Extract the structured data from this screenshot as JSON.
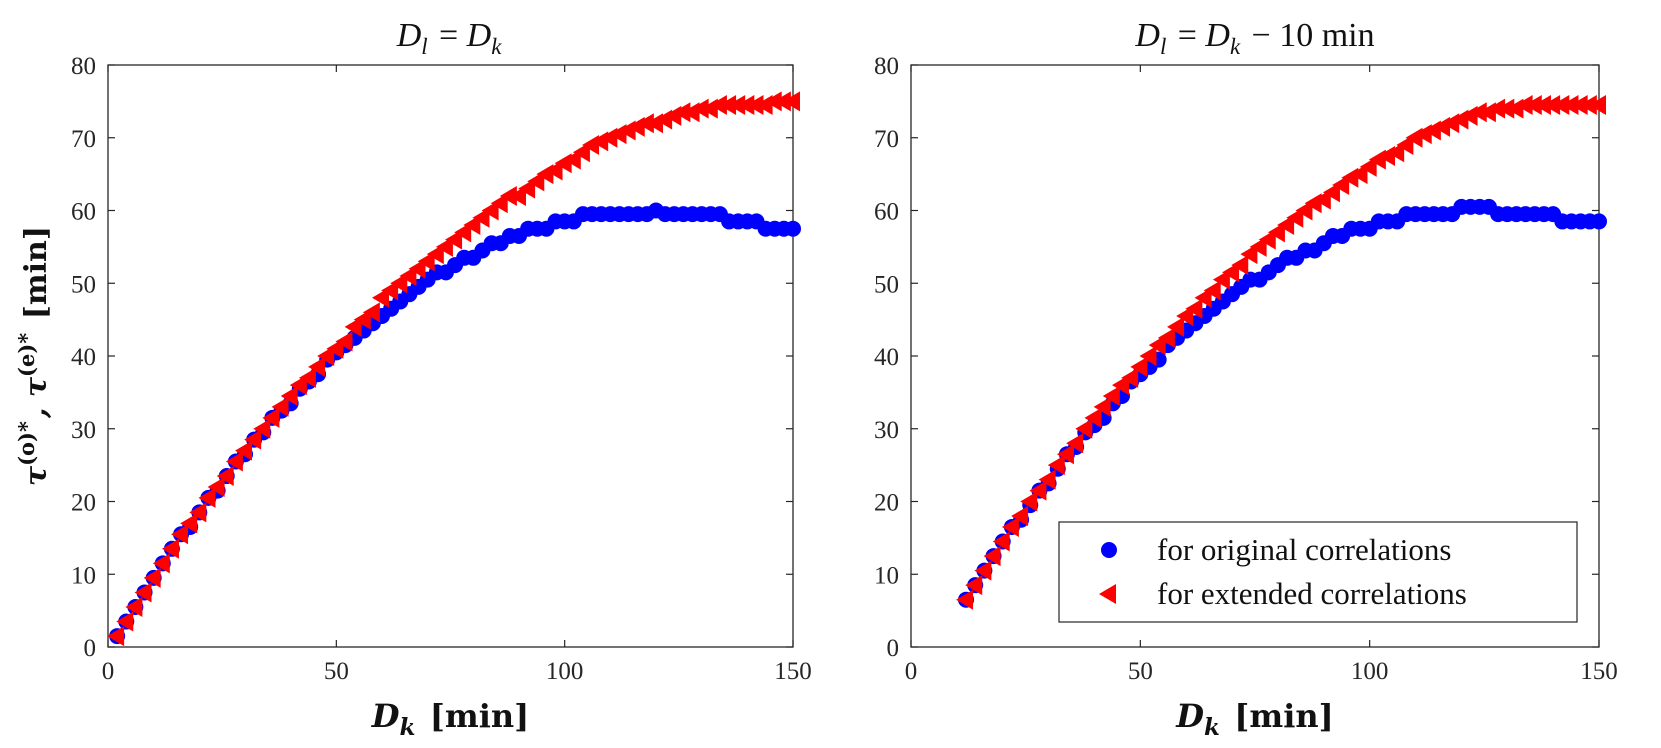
{
  "chart_data": [
    {
      "type": "scatter",
      "title": "D_l = D_k",
      "xlabel": "D_k [min]",
      "ylabel": "τ^(o)*, τ^(e)* [min]",
      "xlim": [
        0,
        150
      ],
      "ylim": [
        0,
        80
      ],
      "xticks": [
        "0",
        "50",
        "100",
        "150"
      ],
      "yticks": [
        "0",
        "10",
        "20",
        "30",
        "40",
        "50",
        "60",
        "70",
        "80"
      ],
      "grid": false,
      "series": [
        {
          "name": "for original correlations",
          "marker": "circle",
          "color": "#0000ff",
          "x": [
            2,
            4,
            6,
            8,
            10,
            12,
            14,
            16,
            18,
            20,
            22,
            24,
            26,
            28,
            30,
            32,
            34,
            36,
            38,
            40,
            42,
            44,
            46,
            48,
            50,
            52,
            54,
            56,
            58,
            60,
            62,
            64,
            66,
            68,
            70,
            72,
            74,
            76,
            78,
            80,
            82,
            84,
            86,
            88,
            90,
            92,
            94,
            96,
            98,
            100,
            102,
            104,
            106,
            108,
            110,
            112,
            114,
            116,
            118,
            120,
            122,
            124,
            126,
            128,
            130,
            132,
            134,
            136,
            138,
            140,
            142,
            144,
            146,
            148,
            150
          ],
          "y": [
            1.5,
            3.5,
            5.5,
            7.5,
            9.5,
            11.5,
            13.5,
            15.5,
            16.5,
            18.5,
            20.5,
            21.5,
            23.5,
            25.5,
            26.5,
            28.5,
            29.5,
            31.5,
            32.5,
            33.5,
            35.5,
            36.5,
            37.5,
            39.5,
            40.5,
            41.5,
            42.5,
            43.5,
            44.5,
            45.5,
            46.5,
            47.5,
            48.5,
            49.5,
            50.5,
            51.5,
            51.5,
            52.5,
            53.5,
            53.5,
            54.5,
            55.5,
            55.5,
            56.5,
            56.5,
            57.5,
            57.5,
            57.5,
            58.5,
            58.5,
            58.5,
            59.5,
            59.5,
            59.5,
            59.5,
            59.5,
            59.5,
            59.5,
            59.5,
            60,
            59.5,
            59.5,
            59.5,
            59.5,
            59.5,
            59.5,
            59.5,
            58.5,
            58.5,
            58.5,
            58.5,
            57.5,
            57.5,
            57.5,
            57.5
          ]
        },
        {
          "name": "for extended correlations",
          "marker": "triangle-left",
          "color": "#ff0000",
          "x": [
            2,
            4,
            6,
            8,
            10,
            12,
            14,
            16,
            18,
            20,
            22,
            24,
            26,
            28,
            30,
            32,
            34,
            36,
            38,
            40,
            42,
            44,
            46,
            48,
            50,
            52,
            54,
            56,
            58,
            60,
            62,
            64,
            66,
            68,
            70,
            72,
            74,
            76,
            78,
            80,
            82,
            84,
            86,
            88,
            90,
            92,
            94,
            96,
            98,
            100,
            102,
            104,
            106,
            108,
            110,
            112,
            114,
            116,
            118,
            120,
            122,
            124,
            126,
            128,
            130,
            132,
            134,
            136,
            138,
            140,
            142,
            144,
            146,
            148,
            150
          ],
          "y": [
            1.5,
            3.5,
            5.5,
            7.5,
            9.5,
            11.5,
            13.5,
            15.5,
            17,
            18.5,
            20.5,
            22,
            23.5,
            25.5,
            27,
            28.5,
            30,
            31.5,
            33,
            34.5,
            36,
            37,
            38.5,
            40,
            41,
            42,
            44,
            45,
            46,
            48,
            49,
            50,
            51,
            52,
            53,
            54,
            55,
            56,
            57,
            58,
            59,
            60,
            61,
            62,
            62,
            63,
            64,
            65,
            65.5,
            66.5,
            67,
            68,
            69,
            69.5,
            70,
            70.5,
            71,
            71.5,
            72,
            72,
            72.5,
            73,
            73.5,
            73.5,
            74,
            74,
            74.5,
            74.5,
            74.5,
            74.5,
            74.5,
            74.5,
            75,
            75,
            75
          ]
        }
      ]
    },
    {
      "type": "scatter",
      "title": "D_l = D_k − 10 min",
      "xlabel": "D_k [min]",
      "ylabel": "",
      "xlim": [
        0,
        150
      ],
      "ylim": [
        0,
        80
      ],
      "xticks": [
        "0",
        "50",
        "100",
        "150"
      ],
      "yticks": [
        "0",
        "10",
        "20",
        "30",
        "40",
        "50",
        "60",
        "70",
        "80"
      ],
      "grid": false,
      "legend_position": "bottom-right",
      "series": [
        {
          "name": "for original correlations",
          "marker": "circle",
          "color": "#0000ff",
          "x": [
            12,
            14,
            16,
            18,
            20,
            22,
            24,
            26,
            28,
            30,
            32,
            34,
            36,
            38,
            40,
            42,
            44,
            46,
            48,
            50,
            52,
            54,
            56,
            58,
            60,
            62,
            64,
            66,
            68,
            70,
            72,
            74,
            76,
            78,
            80,
            82,
            84,
            86,
            88,
            90,
            92,
            94,
            96,
            98,
            100,
            102,
            104,
            106,
            108,
            110,
            112,
            114,
            116,
            118,
            120,
            122,
            124,
            126,
            128,
            130,
            132,
            134,
            136,
            138,
            140,
            142,
            144,
            146,
            148,
            150
          ],
          "y": [
            6.5,
            8.5,
            10.5,
            12.5,
            14.5,
            16.5,
            17.5,
            19.5,
            21.5,
            22.5,
            24.5,
            26.5,
            27.5,
            29.5,
            30.5,
            31.5,
            33.5,
            34.5,
            36.5,
            37.5,
            38.5,
            39.5,
            41.5,
            42.5,
            43.5,
            44.5,
            45.5,
            46.5,
            47.5,
            48.5,
            49.5,
            50.5,
            50.5,
            51.5,
            52.5,
            53.5,
            53.5,
            54.5,
            54.5,
            55.5,
            56.5,
            56.5,
            57.5,
            57.5,
            57.5,
            58.5,
            58.5,
            58.5,
            59.5,
            59.5,
            59.5,
            59.5,
            59.5,
            59.5,
            60.5,
            60.5,
            60.5,
            60.5,
            59.5,
            59.5,
            59.5,
            59.5,
            59.5,
            59.5,
            59.5,
            58.5,
            58.5,
            58.5,
            58.5,
            58.5
          ]
        },
        {
          "name": "for extended correlations",
          "marker": "triangle-left",
          "color": "#ff0000",
          "x": [
            12,
            14,
            16,
            18,
            20,
            22,
            24,
            26,
            28,
            30,
            32,
            34,
            36,
            38,
            40,
            42,
            44,
            46,
            48,
            50,
            52,
            54,
            56,
            58,
            60,
            62,
            64,
            66,
            68,
            70,
            72,
            74,
            76,
            78,
            80,
            82,
            84,
            86,
            88,
            90,
            92,
            94,
            96,
            98,
            100,
            102,
            104,
            106,
            108,
            110,
            112,
            114,
            116,
            118,
            120,
            122,
            124,
            126,
            128,
            130,
            132,
            134,
            136,
            138,
            140,
            142,
            144,
            146,
            148,
            150
          ],
          "y": [
            6.5,
            8.5,
            10.5,
            12.5,
            14.5,
            16.5,
            18,
            20,
            21.5,
            23,
            25,
            26.5,
            28,
            30,
            31.5,
            33,
            34.5,
            36,
            37,
            38.5,
            40,
            41.5,
            42.5,
            44,
            45.5,
            46.5,
            48,
            49,
            50.5,
            51.5,
            52.5,
            54,
            55,
            56,
            57,
            58,
            59,
            60,
            61,
            61.5,
            62.5,
            63.5,
            64.5,
            65,
            66,
            67,
            67.5,
            68,
            69,
            70,
            70.5,
            71,
            71.5,
            72,
            72.5,
            73,
            73.5,
            73.5,
            74,
            74,
            74,
            74.5,
            74.5,
            74.5,
            74.5,
            74.5,
            74.5,
            74.5,
            74.5,
            74.5
          ]
        }
      ]
    }
  ]
}
